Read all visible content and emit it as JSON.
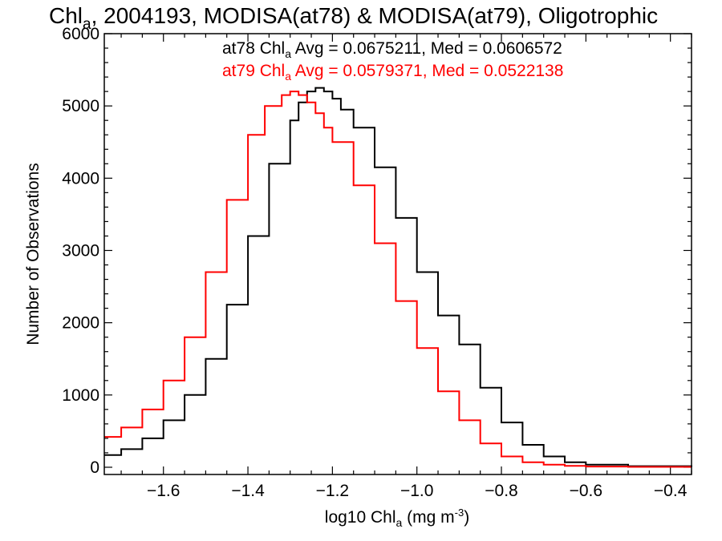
{
  "chart_data": {
    "type": "line",
    "title": {
      "prefix": "Chl",
      "sub": "a",
      "rest": ", 2004193, MODISA(at78) & MODISA(at79), Oligotrophic"
    },
    "xlabel": {
      "prefix": "log10 Chl",
      "sub": "a",
      "mid": " (mg m",
      "sup": "-3",
      "suffix": ")"
    },
    "ylabel": "Number of Observations",
    "xlim": [
      -1.74,
      -0.35
    ],
    "ylim": [
      -100,
      6000
    ],
    "xticks": [
      -1.6,
      -1.4,
      -1.2,
      -1.0,
      -0.8,
      -0.6,
      -0.4
    ],
    "xtick_labels": [
      "−1.6",
      "−1.4",
      "−1.2",
      "−1.0",
      "−0.8",
      "−0.6",
      "−0.4"
    ],
    "yticks": [
      0,
      1000,
      2000,
      3000,
      4000,
      5000,
      6000
    ],
    "ytick_labels": [
      "0",
      "1000",
      "2000",
      "3000",
      "4000",
      "5000",
      "6000"
    ],
    "grid": false,
    "annotations": [
      {
        "prefix": "at78 Chl",
        "sub": "a",
        "rest": " Avg = 0.0675211, Med = 0.0606572",
        "color": "#000000"
      },
      {
        "prefix": "at79 Chl",
        "sub": "a",
        "rest": " Avg = 0.0579371, Med = 0.0522138",
        "color": "#ff0000"
      }
    ],
    "series": [
      {
        "color": "#000000",
        "x": [
          -1.74,
          -1.7,
          -1.65,
          -1.6,
          -1.55,
          -1.5,
          -1.45,
          -1.4,
          -1.35,
          -1.3,
          -1.28,
          -1.26,
          -1.24,
          -1.22,
          -1.2,
          -1.18,
          -1.15,
          -1.1,
          -1.05,
          -1.0,
          -0.95,
          -0.9,
          -0.85,
          -0.8,
          -0.75,
          -0.7,
          -0.65,
          -0.6,
          -0.5,
          -0.35
        ],
        "y": [
          170,
          250,
          400,
          650,
          1000,
          1500,
          2250,
          3200,
          4200,
          4800,
          5050,
          5200,
          5250,
          5200,
          5100,
          4950,
          4700,
          4150,
          3450,
          2700,
          2100,
          1700,
          1100,
          620,
          310,
          150,
          70,
          35,
          15,
          5
        ]
      },
      {
        "color": "#ff0000",
        "x": [
          -1.74,
          -1.7,
          -1.65,
          -1.6,
          -1.55,
          -1.5,
          -1.45,
          -1.4,
          -1.36,
          -1.32,
          -1.3,
          -1.28,
          -1.26,
          -1.24,
          -1.22,
          -1.2,
          -1.15,
          -1.1,
          -1.05,
          -1.0,
          -0.95,
          -0.9,
          -0.85,
          -0.8,
          -0.75,
          -0.7,
          -0.65,
          -0.6,
          -0.5,
          -0.35
        ],
        "y": [
          420,
          550,
          800,
          1200,
          1800,
          2700,
          3700,
          4600,
          5000,
          5150,
          5200,
          5150,
          5050,
          4900,
          4700,
          4500,
          3900,
          3100,
          2300,
          1650,
          1050,
          650,
          330,
          150,
          70,
          35,
          20,
          10,
          5,
          5
        ]
      }
    ]
  }
}
